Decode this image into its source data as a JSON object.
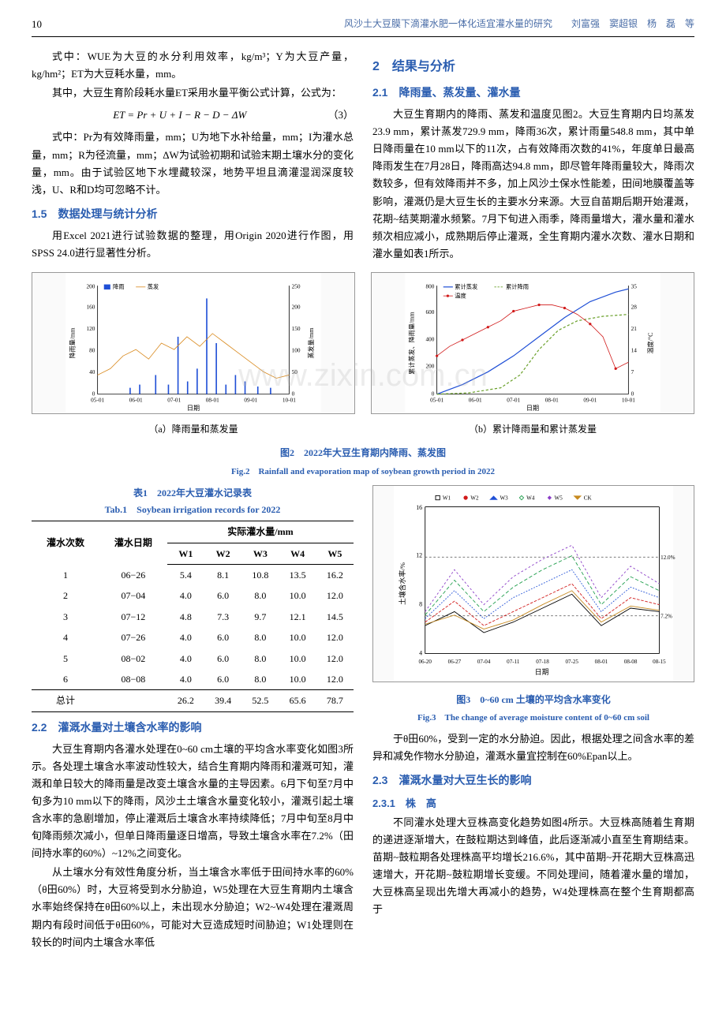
{
  "header": {
    "page": "10",
    "running": "风沙土大豆膜下滴灌水肥一体化适宜灌水量的研究　　刘富强　窦超银　杨　磊　等"
  },
  "left_top": {
    "p1": "式中：WUE为大豆的水分利用效率，kg/m³；Y为大豆产量，kg/hm²；ET为大豆耗水量，mm。",
    "p2": "其中，大豆生育阶段耗水量ET采用水量平衡公式计算，公式为：",
    "formula": "ET = Pr + U + I − R − D − ΔW",
    "formula_num": "（3）",
    "p3": "式中：Pr为有效降雨量，mm；U为地下水补给量，mm；I为灌水总量，mm；R为径流量，mm；ΔW为试验初期和试验末期土壤水分的变化量，mm。由于试验区地下水埋藏较深，地势平坦且滴灌湿润深度较浅，U、R和D均可忽略不计。",
    "h15": "1.5　数据处理与统计分析",
    "p4": "用Excel 2021进行试验数据的整理，用Origin 2020进行作图，用SPSS 24.0进行显著性分析。"
  },
  "right_top": {
    "h2": "2　结果与分析",
    "h21": "2.1　降雨量、蒸发量、灌水量",
    "p1": "大豆生育期内的降雨、蒸发和温度见图2。大豆生育期内日均蒸发23.9 mm，累计蒸发729.9 mm，降雨36次，累计雨量548.8 mm，其中单日降雨量在10 mm以下的11次，占有效降雨次数的41%，年度单日最高降雨发生在7月28日，降雨高达94.8 mm，即尽管年降雨量较大，降雨次数较多，但有效降雨并不多，加上风沙土保水性能差，田间地膜覆盖等影响，灌溉仍是大豆生长的主要水分来源。大豆自苗期后期开始灌溉，花期~结荚期灌水频繁。7月下旬进入雨季，降雨量增大，灌水量和灌水频次相应减小，成熟期后停止灌溉，全生育期内灌水次数、灌水日期和灌水量如表1所示。"
  },
  "fig2": {
    "chart_a": {
      "legend": [
        "降雨",
        "蒸发"
      ],
      "colors": [
        "#1f4fd6",
        "#d98a1f"
      ],
      "ylabel_left": "降雨量/mm",
      "ylabel_right": "蒸发量/mm",
      "xlabel": "日期",
      "xticks": [
        "05-01",
        "06-01",
        "07-01",
        "08-01",
        "09-01",
        "10-01"
      ],
      "ylim_left": [
        0,
        200
      ],
      "ytick_left": 40,
      "ylim_right": [
        0,
        250
      ],
      "ytick_right": 50,
      "sub_caption": "（a）降雨量和蒸发量"
    },
    "chart_b": {
      "legend": [
        "累计蒸发",
        "累计降雨",
        "温度"
      ],
      "colors": [
        "#1f4fd6",
        "#6aa02a",
        "#d11a1a"
      ],
      "ylabel_left": "累计蒸发、降雨量/mm",
      "ylabel_right": "温度/°C",
      "xlabel": "日期",
      "xticks": [
        "05-01",
        "06-01",
        "07-01",
        "08-01",
        "09-01",
        "10-01"
      ],
      "ylim_left": [
        0,
        800
      ],
      "ytick_left": 200,
      "ylim_right": [
        0,
        35
      ],
      "ytick_right": 7,
      "sub_caption": "（b）累计降雨量和累计蒸发量"
    },
    "caption_cn": "图2　2022年大豆生育期内降雨、蒸发图",
    "caption_en": "Fig.2　Rainfall and evaporation map of soybean growth period in 2022"
  },
  "table1": {
    "caption_cn": "表1　2022年大豆灌水记录表",
    "caption_en": "Tab.1　Soybean irrigation records for 2022",
    "header1": [
      "灌水次数",
      "灌水日期",
      "实际灌水量/mm"
    ],
    "header2": [
      "W1",
      "W2",
      "W3",
      "W4",
      "W5"
    ],
    "rows": [
      [
        "1",
        "06−26",
        "5.4",
        "8.1",
        "10.8",
        "13.5",
        "16.2"
      ],
      [
        "2",
        "07−04",
        "4.0",
        "6.0",
        "8.0",
        "10.0",
        "12.0"
      ],
      [
        "3",
        "07−12",
        "4.8",
        "7.3",
        "9.7",
        "12.1",
        "14.5"
      ],
      [
        "4",
        "07−26",
        "4.0",
        "6.0",
        "8.0",
        "10.0",
        "12.0"
      ],
      [
        "5",
        "08−02",
        "4.0",
        "6.0",
        "8.0",
        "10.0",
        "12.0"
      ],
      [
        "6",
        "08−08",
        "4.0",
        "6.0",
        "8.0",
        "10.0",
        "12.0"
      ]
    ],
    "total": [
      "总计",
      "",
      "26.2",
      "39.4",
      "52.5",
      "65.6",
      "78.7"
    ]
  },
  "fig3": {
    "legend": [
      "W1",
      "W2",
      "W3",
      "W4",
      "W5",
      "CK"
    ],
    "colors": [
      "#000000",
      "#d11a1a",
      "#1f4fd6",
      "#1f9e4c",
      "#8a3cc7",
      "#c78a1f"
    ],
    "markers": [
      "square",
      "circle",
      "triangle",
      "diamond",
      "diamond",
      "triangle-down"
    ],
    "ylabel": "土壤含水率/%",
    "xlabel": "日期",
    "xticks": [
      "06-20",
      "06-27",
      "07-04",
      "07-11",
      "07-18",
      "07-25",
      "08-01",
      "08-08",
      "08-15"
    ],
    "ylim": [
      4,
      16
    ],
    "ytick": 4,
    "ref_lines": [
      "12.0%",
      "7.2%"
    ],
    "caption_cn": "图3　0~60 cm 土壤的平均含水率变化",
    "caption_en": "Fig.3　The change of average moisture content of 0~60 cm soil"
  },
  "sec22": {
    "title": "2.2　灌溉水量对土壤含水率的影响",
    "p1": "大豆生育期内各灌水处理在0~60 cm土壤的平均含水率变化如图3所示。各处理土壤含水率波动性较大，结合生育期内降雨和灌溉可知，灌溉和单日较大的降雨量是改变土壤含水量的主导因素。6月下旬至7月中旬多为10 mm以下的降雨，风沙土土壤含水量变化较小，灌溉引起土壤含水率的急剧增加，停止灌溉后土壤含水率持续降低；7月中旬至8月中旬降雨频次减小，但单日降雨量逐日增高，导致土壤含水率在7.2%（田间持水率的60%）~12%之间变化。",
    "p2": "从土壤水分有效性角度分析，当土壤含水率低于田间持水率的60%（θ田60%）时，大豆将受到水分胁迫，W5处理在大豆生育期内土壤含水率始终保持在θ田60%以上，未出现水分胁迫；W2~W4处理在灌溉周期内有段时间低于θ田60%，可能对大豆造成短时间胁迫；W1处理则在较长的时间内土壤含水率低"
  },
  "right_bottom": {
    "p1": "于θ田60%，受到一定的水分胁迫。因此，根据处理之间含水率的差异和减免作物水分胁迫，灌溉水量宜控制在60%Epan以上。",
    "h23": "2.3　灌溉水量对大豆生长的影响",
    "h231": "2.3.1　株　高",
    "p2": "不同灌水处理大豆株高变化趋势如图4所示。大豆株高随着生育期的递进逐渐增大，在鼓粒期达到峰值，此后逐渐减小直至生育期结束。苗期~鼓粒期各处理株高平均增长216.6%，其中苗期~开花期大豆株高迅速增大，开花期~鼓粒期增长变缓。不同处理间，随着灌水量的增加，大豆株高呈现出先增大再减小的趋势，W4处理株高在整个生育期都高于"
  }
}
